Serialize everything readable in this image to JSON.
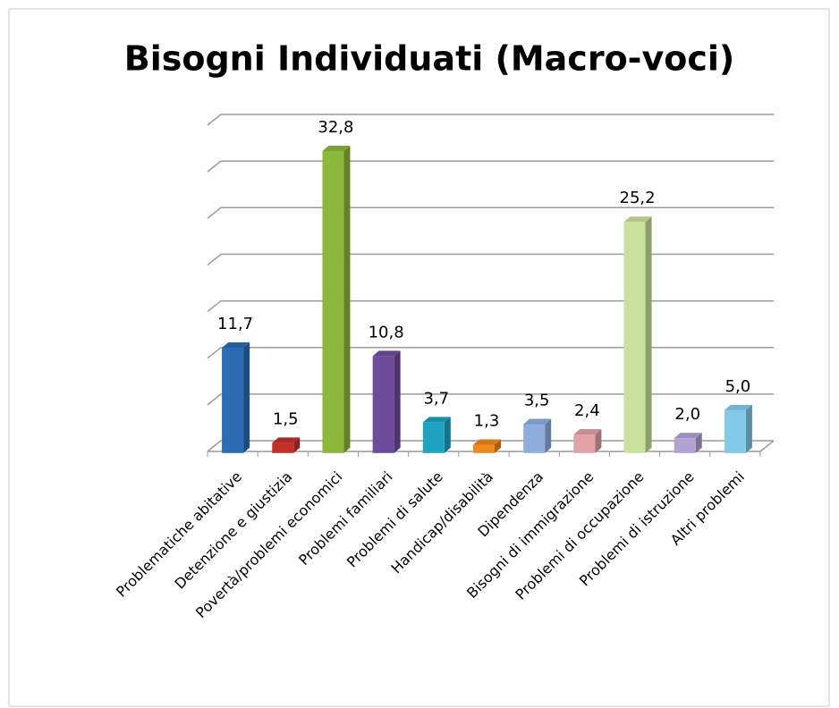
{
  "chart_data": {
    "type": "bar3d",
    "title": "Bisogni Individuati (Macro-voci)",
    "categories": [
      "Problematiche abitative",
      "Detenzione e giustizia",
      "Povertà/problemi economici",
      "Problemi familiari",
      "Problemi di salute",
      "Handicap/disabilità",
      "Dipendenza",
      "Bisogni di immigrazione",
      "Problemi di occupazione",
      "Problemi di istruzione",
      "Altri problemi"
    ],
    "values": [
      11.7,
      1.5,
      32.8,
      10.8,
      3.7,
      1.3,
      3.5,
      2.4,
      25.2,
      2.0,
      5.0
    ],
    "value_labels": [
      "11,7",
      "1,5",
      "32,8",
      "10,8",
      "3,7",
      "1,3",
      "3,5",
      "2,4",
      "25,2",
      "2,0",
      "5,0"
    ],
    "colors": [
      "#2b6cb4",
      "#c2302c",
      "#8cb83a",
      "#6f4c9b",
      "#1ea3c2",
      "#f08a1c",
      "#8eaee0",
      "#e3a1a8",
      "#c9e19c",
      "#b2a2d3",
      "#83cbe9"
    ],
    "ylim": [
      0,
      35
    ],
    "yticks": [
      0,
      5,
      10,
      15,
      20,
      25,
      30,
      35
    ],
    "grid": true
  }
}
